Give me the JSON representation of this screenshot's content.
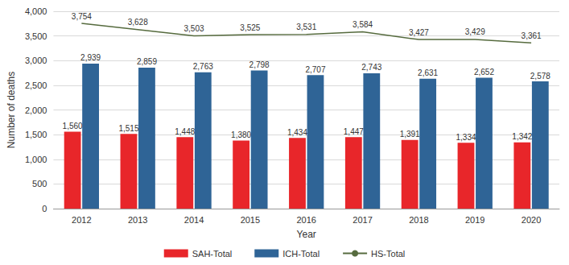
{
  "chart_data": {
    "type": "bar",
    "x_label": "Year",
    "y_label": "Number of deaths",
    "categories": [
      "2012",
      "2013",
      "2014",
      "2015",
      "2016",
      "2017",
      "2018",
      "2019",
      "2020"
    ],
    "series": [
      {
        "name": "SAH-Total",
        "type": "bar",
        "color": "#e8262a",
        "values": [
          1560,
          1515,
          1448,
          1380,
          1434,
          1447,
          1391,
          1334,
          1342
        ],
        "value_labels": [
          "1,560",
          "1,515",
          "1,448",
          "1,380",
          "1,434",
          "1,447",
          "1,391",
          "1,334",
          "1,342"
        ]
      },
      {
        "name": "ICH-Total",
        "type": "bar",
        "color": "#2f6496",
        "values": [
          2939,
          2859,
          2763,
          2798,
          2707,
          2743,
          2631,
          2652,
          2578
        ],
        "value_labels": [
          "2,939",
          "2,859",
          "2,763",
          "2,798",
          "2,707",
          "2,743",
          "2,631",
          "2,652",
          "2,578"
        ]
      },
      {
        "name": "HS-Total",
        "type": "line",
        "color": "#566b3e",
        "values": [
          3754,
          3628,
          3503,
          3525,
          3531,
          3584,
          3427,
          3429,
          3361
        ],
        "value_labels": [
          "3,754",
          "3,628",
          "3,503",
          "3,525",
          "3,531",
          "3,584",
          "3,427",
          "3,429",
          "3,361"
        ]
      }
    ],
    "ylim": [
      0,
      4000
    ],
    "yticks": [
      0,
      500,
      {
        "value": 1000,
        "label": "1,000"
      },
      {
        "value": 1500,
        "label": "1,500"
      },
      {
        "value": 2000,
        "label": "2,000"
      },
      {
        "value": 2500,
        "label": "2,500"
      },
      {
        "value": 3000,
        "label": "3,000"
      },
      {
        "value": 3500,
        "label": "3,500"
      },
      {
        "value": 4000,
        "label": "4,000"
      }
    ],
    "grid": true,
    "legend": "bottom",
    "data_labels": true
  }
}
